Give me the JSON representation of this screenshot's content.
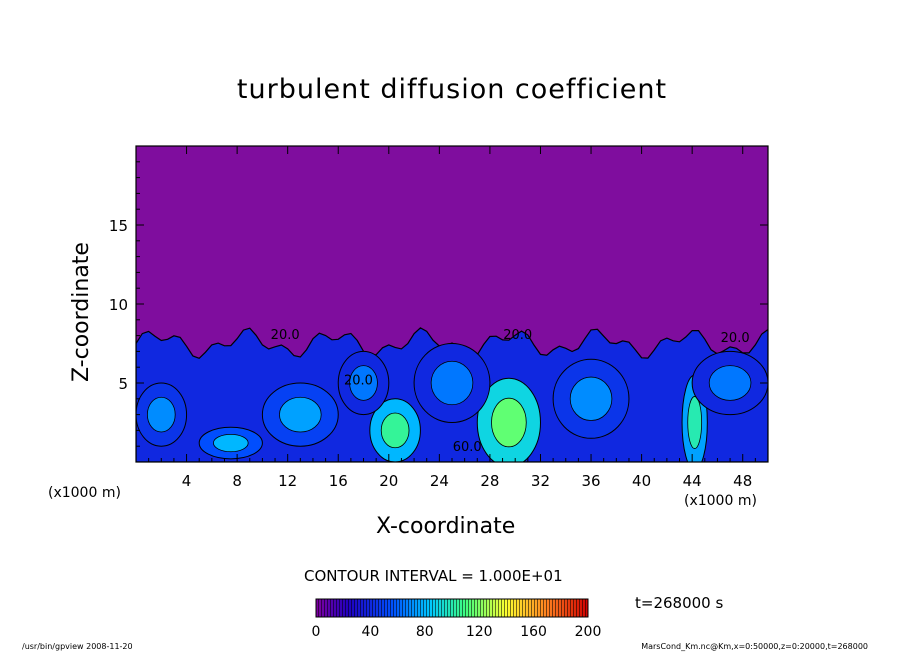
{
  "chart_data": {
    "type": "heatmap",
    "title": "turbulent diffusion coefficient",
    "xlabel": "X-coordinate",
    "ylabel": "Z-coordinate",
    "x_unit": "(x1000 m)",
    "xlim": [
      0,
      50
    ],
    "ylim": [
      0,
      20
    ],
    "x_ticks": [
      4,
      8,
      12,
      16,
      20,
      24,
      28,
      32,
      36,
      40,
      44,
      48
    ],
    "y_ticks": [
      5,
      10,
      15
    ],
    "contour_interval": "CONTOUR INTERVAL = 1.000E+01",
    "contour_labels": [
      "20.0",
      "20.0",
      "20.0",
      "20.0",
      "60.0"
    ],
    "colorbar": {
      "min": 0,
      "max": 200,
      "ticks": [
        0,
        40,
        80,
        120,
        160,
        200
      ]
    },
    "time_label": "t=268000 s",
    "background_color": "#7f0d9e",
    "turbulent_layer_top": 8,
    "regions": [
      {
        "type": "layer",
        "z_top": 8,
        "value": 20
      },
      {
        "type": "blob",
        "x": 29.5,
        "z": 2.5,
        "rx": 2.5,
        "rz": 2.8,
        "value": 90
      },
      {
        "type": "blob",
        "x": 20.5,
        "z": 2,
        "rx": 2,
        "rz": 2,
        "value": 80
      },
      {
        "type": "blob",
        "x": 44.2,
        "z": 2.5,
        "rx": 1,
        "rz": 3,
        "value": 75
      },
      {
        "type": "blob",
        "x": 7.5,
        "z": 1.2,
        "rx": 2.5,
        "rz": 1,
        "value": 55
      },
      {
        "type": "blob",
        "x": 13,
        "z": 3,
        "rx": 3,
        "rz": 2,
        "value": 50
      },
      {
        "type": "blob",
        "x": 2,
        "z": 3,
        "rx": 2,
        "rz": 2,
        "value": 45
      },
      {
        "type": "blob",
        "x": 36,
        "z": 4,
        "rx": 3,
        "rz": 2.5,
        "value": 45
      },
      {
        "type": "blob",
        "x": 25,
        "z": 5,
        "rx": 3,
        "rz": 2.5,
        "value": 40
      },
      {
        "type": "blob",
        "x": 18,
        "z": 5,
        "rx": 2,
        "rz": 2,
        "value": 40
      },
      {
        "type": "blob",
        "x": 47,
        "z": 5,
        "rx": 3,
        "rz": 2,
        "value": 40
      }
    ],
    "contour_label_positions": [
      {
        "x": 11.8,
        "z": 7.8
      },
      {
        "x": 30.2,
        "z": 7.8
      },
      {
        "x": 47.4,
        "z": 7.6
      },
      {
        "x": 17.6,
        "z": 4.9
      },
      {
        "x": 26.2,
        "z": 0.7
      }
    ]
  },
  "footer": {
    "left": "/usr/bin/gpview   2008-11-20",
    "right": "MarsCond_Km.nc@Km,x=0:50000,z=0:20000,t=268000"
  }
}
